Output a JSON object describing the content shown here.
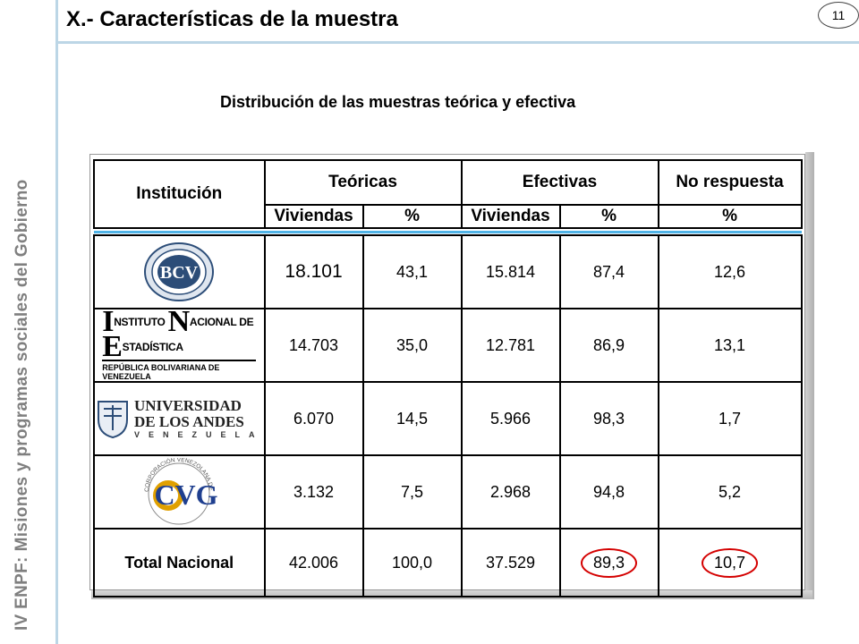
{
  "slide": {
    "title": "X.- Características de la muestra",
    "page_number": "11",
    "side_label_part1": "IV ENPF:",
    "side_label_part2": "Misiones y programas sociales del Gobierno",
    "subtitle": "Distribución de las muestras teórica y efectiva"
  },
  "table": {
    "header": {
      "institucion": "Institución",
      "teoricas": "Teóricas",
      "efectivas": "Efectivas",
      "no_respuesta": "No respuesta",
      "viviendas_t": "Viviendas",
      "pct_t": "%",
      "viviendas_e": "Viviendas",
      "pct_e": "%",
      "pct_nr": "%"
    },
    "rows": [
      {
        "institution": "BCV",
        "teo_viv": "18.101",
        "teo_pct": "43,1",
        "efe_viv": "15.814",
        "efe_pct": "87,4",
        "nr_pct": "12,6"
      },
      {
        "institution": "Instituto Nacional de Estadística - República Bolivariana de Venezuela",
        "teo_viv": "14.703",
        "teo_pct": "35,0",
        "efe_viv": "12.781",
        "efe_pct": "86,9",
        "nr_pct": "13,1"
      },
      {
        "institution": "Universidad de los Andes - Venezuela",
        "teo_viv": "6.070",
        "teo_pct": "14,5",
        "efe_viv": "5.966",
        "efe_pct": "98,3",
        "nr_pct": "1,7"
      },
      {
        "institution": "CVG - Corporación Venezolana de Guayana",
        "teo_viv": "3.132",
        "teo_pct": "7,5",
        "efe_viv": "2.968",
        "efe_pct": "94,8",
        "nr_pct": "5,2"
      }
    ],
    "total": {
      "label": "Total Nacional",
      "teo_viv": "42.006",
      "teo_pct": "100,0",
      "efe_viv": "37.529",
      "efe_pct": "89,3",
      "nr_pct": "10,7"
    }
  },
  "logos": {
    "bcv": {
      "text": "BCV"
    },
    "ine": {
      "top_i": "I",
      "top_1": "NSTITUTO ",
      "top_n": "N",
      "top_2": "ACIONAL DE ",
      "top_e": "E",
      "top_3": "STADÍSTICA",
      "bottom": "REPÚBLICA BOLIVARIANA DE VENEZUELA"
    },
    "ula": {
      "line1": "UNIVERSIDAD",
      "line2": "DE LOS ANDES",
      "line3": "VENEZUELA"
    },
    "cvg": {
      "text": "CVG",
      "ring": "CORPORACIÓN VENEZOLANA DE GUAYANA"
    }
  },
  "colors": {
    "accent_line": "#bcd6e6",
    "separator": "#4fb3e6",
    "highlight_circle": "#d40000",
    "side_text": "#7f7f7f"
  }
}
